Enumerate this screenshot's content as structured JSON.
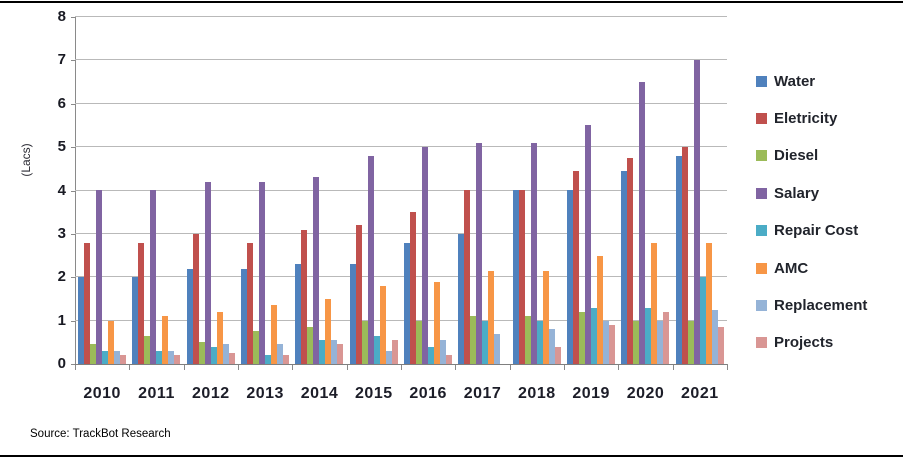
{
  "chart_data": {
    "type": "bar",
    "ylabel": "(Lacs)",
    "ylim": [
      0,
      8
    ],
    "yticks": [
      "0",
      "1",
      "2",
      "3",
      "4",
      "5",
      "6",
      "7",
      "8"
    ],
    "grid": true,
    "legend_position": "right",
    "categories": [
      "2010",
      "2011",
      "2012",
      "2013",
      "2014",
      "2015",
      "2016",
      "2017",
      "2018",
      "2019",
      "2020",
      "2021"
    ],
    "series": [
      {
        "name": "Water",
        "color": "#4F81BD",
        "values": [
          2.0,
          2.0,
          2.2,
          2.2,
          2.3,
          2.3,
          2.8,
          3.0,
          4.0,
          4.0,
          4.45,
          4.8
        ]
      },
      {
        "name": "Eletricity",
        "color": "#C0504D",
        "values": [
          2.8,
          2.8,
          3.0,
          2.8,
          3.1,
          3.2,
          3.5,
          4.0,
          4.0,
          4.45,
          4.75,
          5.0
        ]
      },
      {
        "name": "Diesel",
        "color": "#9BBB59",
        "values": [
          0.45,
          0.65,
          0.5,
          0.75,
          0.85,
          1.0,
          1.0,
          1.1,
          1.1,
          1.2,
          1.0,
          1.0
        ]
      },
      {
        "name": "Salary",
        "color": "#8064A2",
        "values": [
          4.0,
          4.0,
          4.2,
          4.2,
          4.3,
          4.8,
          5.0,
          5.1,
          5.1,
          5.5,
          6.5,
          7.0
        ]
      },
      {
        "name": "Repair Cost",
        "color": "#4BACC6",
        "values": [
          0.3,
          0.3,
          0.4,
          0.2,
          0.55,
          0.65,
          0.4,
          1.0,
          1.0,
          1.3,
          1.3,
          2.0
        ]
      },
      {
        "name": "AMC",
        "color": "#F79646",
        "values": [
          1.0,
          1.1,
          1.2,
          1.35,
          1.5,
          1.8,
          1.9,
          2.15,
          2.15,
          2.5,
          2.8,
          2.8
        ]
      },
      {
        "name": "Replacement",
        "color": "#95B3D7",
        "values": [
          0.3,
          0.3,
          0.45,
          0.45,
          0.55,
          0.3,
          0.55,
          0.7,
          0.8,
          1.0,
          1.0,
          1.25
        ]
      },
      {
        "name": "Projects",
        "color": "#D99694",
        "values": [
          0.2,
          0.2,
          0.25,
          0.2,
          0.45,
          0.55,
          0.2,
          0,
          0.4,
          0.9,
          1.2,
          0.85
        ]
      }
    ]
  },
  "footer": {
    "source": "Source: TrackBot Research"
  }
}
